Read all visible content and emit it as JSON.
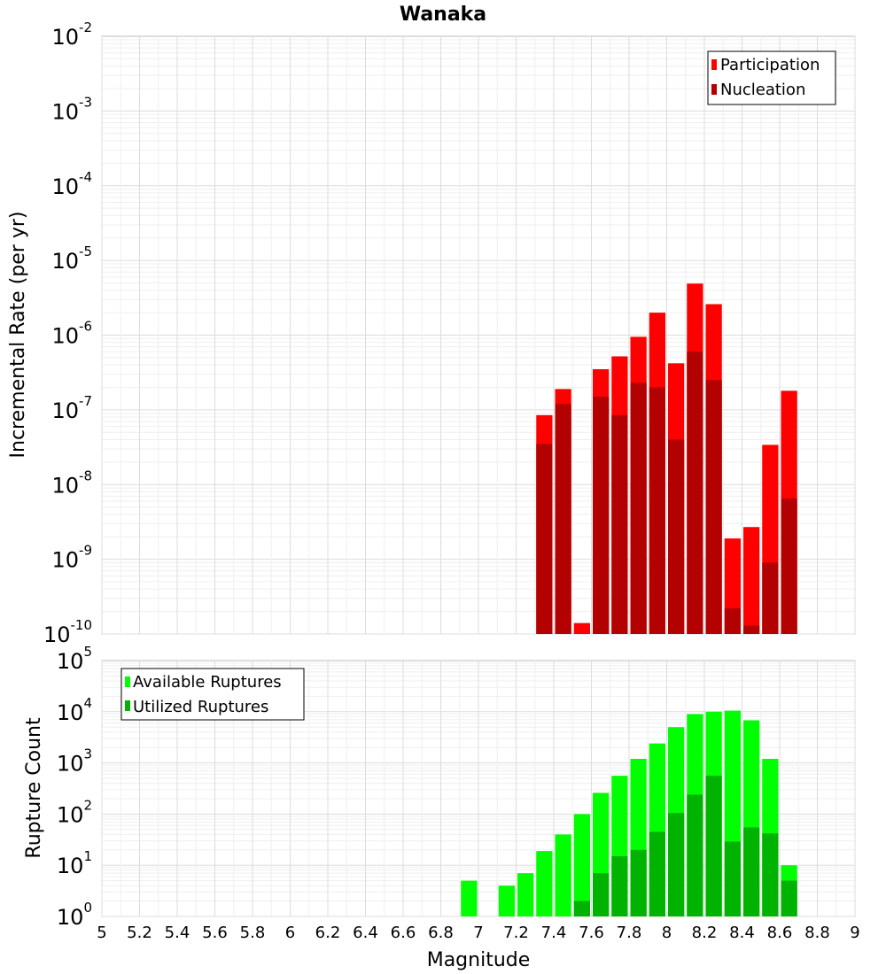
{
  "chart_data": [
    {
      "type": "bar",
      "title": "Wanaka",
      "xlabel": "",
      "ylabel": "Incremental Rate (per yr)",
      "yscale": "log",
      "ylim": [
        1e-10,
        0.01
      ],
      "xlim": [
        5,
        9
      ],
      "y_ticks": [
        {
          "base": "10",
          "exp": "-2",
          "value": 0.01
        },
        {
          "base": "10",
          "exp": "-3",
          "value": 0.001
        },
        {
          "base": "10",
          "exp": "-4",
          "value": 0.0001
        },
        {
          "base": "10",
          "exp": "-5",
          "value": 1e-05
        },
        {
          "base": "10",
          "exp": "-6",
          "value": 1e-06
        },
        {
          "base": "10",
          "exp": "-7",
          "value": 1e-07
        },
        {
          "base": "10",
          "exp": "-8",
          "value": 1e-08
        },
        {
          "base": "10",
          "exp": "-9",
          "value": 1e-09
        },
        {
          "base": "10",
          "exp": "-10",
          "value": 1e-10
        }
      ],
      "grid": true,
      "legend_position": "top-right",
      "bar_width": 0.1,
      "series": [
        {
          "name": "Participation",
          "color": "#ff0000",
          "x": [
            7.35,
            7.45,
            7.55,
            7.65,
            7.75,
            7.85,
            7.95,
            8.05,
            8.15,
            8.25,
            8.35,
            8.45,
            8.55,
            8.65
          ],
          "values": [
            8.5e-08,
            1.9e-07,
            1.4e-10,
            3.5e-07,
            5.2e-07,
            9.5e-07,
            2e-06,
            4.2e-07,
            4.9e-06,
            2.6e-06,
            1.9e-09,
            2.7e-09,
            3.4e-08,
            1.8e-07
          ]
        },
        {
          "name": "Nucleation",
          "color": "#b30000",
          "x": [
            7.35,
            7.45,
            7.55,
            7.65,
            7.75,
            7.85,
            7.95,
            8.05,
            8.15,
            8.25,
            8.35,
            8.45,
            8.55,
            8.65
          ],
          "values": [
            3.5e-08,
            1.2e-07,
            null,
            1.5e-07,
            8.5e-08,
            2.3e-07,
            2e-07,
            4e-08,
            6e-07,
            2.5e-07,
            2.2e-10,
            1.3e-10,
            9e-10,
            6.5e-09
          ]
        }
      ]
    },
    {
      "type": "bar",
      "title": "",
      "xlabel": "Magnitude",
      "ylabel": "Rupture Count",
      "yscale": "log",
      "ylim": [
        1,
        100000
      ],
      "xlim": [
        5,
        9
      ],
      "x_tick_labels": [
        "5",
        "5.2",
        "5.4",
        "5.6",
        "5.8",
        "6",
        "6.2",
        "6.4",
        "6.6",
        "6.8",
        "7",
        "7.2",
        "7.4",
        "7.6",
        "7.8",
        "8",
        "8.2",
        "8.4",
        "8.6",
        "8.8",
        "9"
      ],
      "y_ticks": [
        {
          "base": "10",
          "exp": "5",
          "value": 100000
        },
        {
          "base": "10",
          "exp": "4",
          "value": 10000
        },
        {
          "base": "10",
          "exp": "3",
          "value": 1000
        },
        {
          "base": "10",
          "exp": "2",
          "value": 100
        },
        {
          "base": "10",
          "exp": "1",
          "value": 10
        },
        {
          "base": "10",
          "exp": "0",
          "value": 1
        }
      ],
      "grid": true,
      "legend_position": "top-left",
      "bar_width": 0.1,
      "series": [
        {
          "name": "Available Ruptures",
          "color": "#00ff00",
          "x": [
            6.95,
            7.15,
            7.25,
            7.35,
            7.45,
            7.55,
            7.65,
            7.75,
            7.85,
            7.95,
            8.05,
            8.15,
            8.25,
            8.35,
            8.45,
            8.55,
            8.65
          ],
          "values": [
            5,
            4,
            7,
            19,
            40,
            100,
            260,
            560,
            1200,
            2400,
            5000,
            9000,
            10000,
            10500,
            6800,
            1200,
            10
          ]
        },
        {
          "name": "Utilized Ruptures",
          "color": "#00b300",
          "x": [
            6.95,
            7.15,
            7.25,
            7.35,
            7.45,
            7.55,
            7.65,
            7.75,
            7.85,
            7.95,
            8.05,
            8.15,
            8.25,
            8.35,
            8.45,
            8.55,
            8.65
          ],
          "values": [
            null,
            null,
            null,
            1,
            1,
            2,
            7,
            15,
            20,
            45,
            105,
            240,
            560,
            29,
            55,
            42,
            5
          ]
        }
      ]
    }
  ]
}
